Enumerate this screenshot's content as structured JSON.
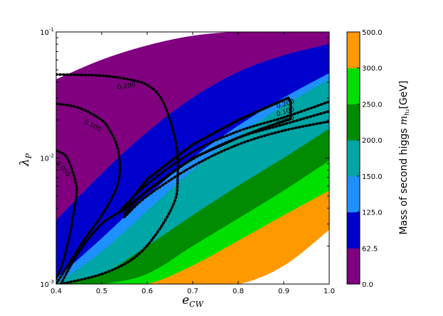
{
  "chart_data": {
    "type": "filled-contour",
    "xlabel": "e_CW",
    "ylabel": "λ_P",
    "xlim": [
      0.4,
      1.0
    ],
    "ylim": [
      0.001,
      0.1
    ],
    "yscale": "log",
    "x_ticks": [
      "0.4",
      "0.5",
      "0.6",
      "0.7",
      "0.8",
      "0.9",
      "1.0"
    ],
    "y_ticks": [
      {
        "value": 0.1,
        "base": "10",
        "exp": "-1"
      },
      {
        "value": 0.01,
        "base": "10",
        "exp": "-2"
      },
      {
        "value": 0.001,
        "base": "10",
        "exp": "-3"
      }
    ],
    "colorbar": {
      "label_main": "Mass of second higgs",
      "label_sym": "m",
      "label_sub": "h₂",
      "label_unit": "[GeV]",
      "ticks": [
        "0.0",
        "62.5",
        "125.0",
        "150.0",
        "200.0",
        "250.0",
        "300.0",
        "500.0"
      ],
      "colors": [
        "#800080",
        "#0000cd",
        "#1e90ff",
        "#00a5a5",
        "#008b00",
        "#00e000",
        "#ff9900"
      ]
    },
    "bands": [
      {
        "range": "0.0-62.5",
        "color": "#800080",
        "lower_y": [
          0.0032,
          0.0075,
          0.016,
          0.03,
          0.048,
          0.065,
          0.08
        ],
        "upper_y": [
          0.042,
          0.06,
          0.078,
          0.093,
          0.1,
          0.1,
          0.1
        ]
      },
      {
        "range": "62.5-125.0",
        "color": "#0000cd",
        "lower_y": [
          0.0011,
          0.0023,
          0.005,
          0.01,
          0.018,
          0.03,
          0.047
        ],
        "upper_y": [
          0.0032,
          0.0075,
          0.016,
          0.03,
          0.048,
          0.065,
          0.08
        ]
      },
      {
        "range": "125.0-150.0",
        "color": "#1e90ff",
        "lower_y": [
          0.001,
          0.0018,
          0.0038,
          0.008,
          0.015,
          0.026,
          0.042
        ],
        "upper_y": [
          0.0011,
          0.0023,
          0.005,
          0.01,
          0.018,
          0.03,
          0.047
        ]
      },
      {
        "range": "150.0-200.0",
        "color": "#00a5a5",
        "lower_y": [
          0.001,
          0.0012,
          0.002,
          0.0035,
          0.006,
          0.01,
          0.017
        ],
        "upper_y": [
          0.001,
          0.0018,
          0.0038,
          0.008,
          0.015,
          0.026,
          0.042
        ]
      },
      {
        "range": "200.0-250.0",
        "color": "#008b00",
        "lower_y": [
          0.001,
          0.001,
          0.0012,
          0.002,
          0.0033,
          0.0055,
          0.0095
        ],
        "upper_y": [
          0.001,
          0.0012,
          0.002,
          0.0035,
          0.006,
          0.01,
          0.017
        ]
      },
      {
        "range": "250.0-300.0",
        "color": "#00e000",
        "lower_y": [
          0.001,
          0.001,
          0.001,
          0.0014,
          0.0022,
          0.0035,
          0.0055
        ],
        "upper_y": [
          0.001,
          0.001,
          0.0012,
          0.002,
          0.0033,
          0.0055,
          0.0095
        ]
      },
      {
        "range": "300.0-500.0",
        "color": "#ff9900",
        "lower_y": [
          0.001,
          0.001,
          0.001,
          0.001,
          0.001,
          0.0014,
          0.0027
        ],
        "upper_y": [
          0.001,
          0.001,
          0.001,
          0.0014,
          0.0022,
          0.0035,
          0.0055
        ]
      }
    ],
    "band_x": [
      0.4,
      0.5,
      0.6,
      0.7,
      0.8,
      0.9,
      1.0
    ],
    "dotted_contours": [
      {
        "label": "0.200",
        "points": [
          [
            0.4,
            0.046
          ],
          [
            0.5,
            0.045
          ],
          [
            0.56,
            0.042
          ],
          [
            0.6,
            0.038
          ],
          [
            0.63,
            0.03
          ],
          [
            0.65,
            0.02
          ],
          [
            0.665,
            0.012
          ],
          [
            0.667,
            0.007
          ],
          [
            0.66,
            0.0045
          ],
          [
            0.62,
            0.0025
          ],
          [
            0.57,
            0.0016
          ],
          [
            0.5,
            0.0012
          ],
          [
            0.41,
            0.001
          ]
        ]
      },
      {
        "label": "0.100",
        "points": [
          [
            0.4,
            0.027
          ],
          [
            0.45,
            0.025
          ],
          [
            0.5,
            0.02
          ],
          [
            0.52,
            0.016
          ],
          [
            0.535,
            0.012
          ],
          [
            0.54,
            0.008
          ],
          [
            0.53,
            0.0055
          ],
          [
            0.5,
            0.0035
          ],
          [
            0.46,
            0.0022
          ],
          [
            0.42,
            0.0013
          ],
          [
            0.4,
            0.001
          ]
        ]
      },
      {
        "label": "0.050",
        "points": [
          [
            0.4,
            0.0115
          ],
          [
            0.42,
            0.0105
          ],
          [
            0.43,
            0.009
          ],
          [
            0.44,
            0.007
          ],
          [
            0.445,
            0.0055
          ],
          [
            0.44,
            0.004
          ],
          [
            0.43,
            0.0025
          ],
          [
            0.415,
            0.0015
          ],
          [
            0.4,
            0.0011
          ]
        ]
      },
      {
        "label": "0.200",
        "points": [
          [
            0.54,
            0.0038
          ],
          [
            0.6,
            0.0062
          ],
          [
            0.7,
            0.0112
          ],
          [
            0.8,
            0.0163
          ],
          [
            0.9,
            0.021
          ],
          [
            1.0,
            0.028
          ]
        ]
      },
      {
        "label": "0.100",
        "points": [
          [
            0.55,
            0.0036
          ],
          [
            0.6,
            0.0055
          ],
          [
            0.7,
            0.0098
          ],
          [
            0.8,
            0.0145
          ],
          [
            0.9,
            0.0185
          ],
          [
            1.0,
            0.0235
          ]
        ]
      },
      {
        "label": "0.050",
        "points": [
          [
            0.55,
            0.0034
          ],
          [
            0.6,
            0.005
          ],
          [
            0.7,
            0.0086
          ],
          [
            0.8,
            0.0128
          ],
          [
            0.9,
            0.0165
          ],
          [
            1.0,
            0.0195
          ]
        ]
      },
      {
        "label": "",
        "points": [
          [
            0.41,
            0.001
          ],
          [
            0.45,
            0.0018
          ],
          [
            0.5,
            0.003
          ],
          [
            0.545,
            0.0038
          ]
        ]
      }
    ],
    "contour_labels": [
      {
        "text": "0.200",
        "x": 0.555,
        "y": 0.036,
        "rotate": -8
      },
      {
        "text": "0.100",
        "x": 0.478,
        "y": 0.0175,
        "rotate": 28
      },
      {
        "text": "0.050",
        "x": 0.412,
        "y": 0.008,
        "rotate": 48
      },
      {
        "text": "0.200",
        "x": 0.905,
        "y": 0.026,
        "rotate": -18
      },
      {
        "text": "0.100",
        "x": 0.905,
        "y": 0.0225,
        "rotate": -18
      },
      {
        "text": "0.050",
        "x": 0.905,
        "y": 0.0193,
        "rotate": -18
      }
    ],
    "solid_region": {
      "points": [
        [
          0.545,
          0.0038
        ],
        [
          0.6,
          0.0068
        ],
        [
          0.7,
          0.0128
        ],
        [
          0.8,
          0.02
        ],
        [
          0.91,
          0.03
        ],
        [
          0.915,
          0.028
        ],
        [
          0.915,
          0.0205
        ],
        [
          0.85,
          0.017
        ],
        [
          0.8,
          0.0145
        ],
        [
          0.7,
          0.01
        ],
        [
          0.6,
          0.0055
        ],
        [
          0.545,
          0.0038
        ]
      ]
    }
  }
}
